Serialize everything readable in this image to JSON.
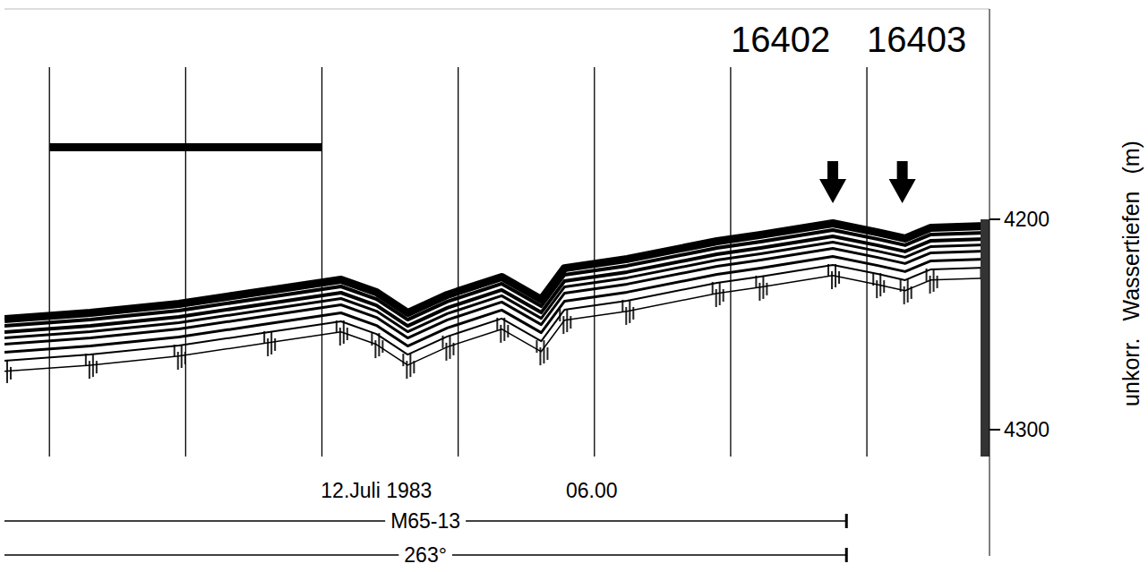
{
  "chart_data": {
    "type": "echogram",
    "y_label": "unkorr. Wassertiefen (m)",
    "x": [
      -0.33,
      0.3,
      0.95,
      1.61,
      2.14,
      2.4,
      2.63,
      2.92,
      3.32,
      3.61,
      3.78,
      4.24,
      4.9,
      5.22,
      5.75,
      6.08,
      6.28,
      6.47,
      6.87
    ],
    "values": [
      4245.5,
      4242.6,
      4238.3,
      4231.9,
      4226.8,
      4232.8,
      4242.6,
      4234.0,
      4225.5,
      4236.2,
      4221.3,
      4217.0,
      4208.5,
      4205.5,
      4200.0,
      4204.3,
      4207.2,
      4202.1,
      4201.3
    ],
    "xlim": [
      -0.33,
      6.9
    ],
    "ylim": [
      4100,
      4360
    ],
    "yticks": [
      4200,
      4300
    ],
    "xticks": [
      0,
      1,
      2,
      3,
      4,
      5,
      6
    ],
    "tick_labels": "y",
    "color": "#000000",
    "stations": [
      {
        "x": 5,
        "label": "16402"
      },
      {
        "x": 6,
        "label": "16403"
      }
    ],
    "arrows": [
      5.75,
      6.26
    ],
    "scale_bar": [
      0,
      2
    ],
    "annotations": [
      {
        "x": 2.4,
        "text": "12.Juli 1983"
      },
      {
        "x": 3.98,
        "text": "06.00"
      }
    ],
    "tracks": [
      {
        "label": "M65-13",
        "end": 5.85
      },
      {
        "label": "263°",
        "end": 5.85
      }
    ]
  }
}
